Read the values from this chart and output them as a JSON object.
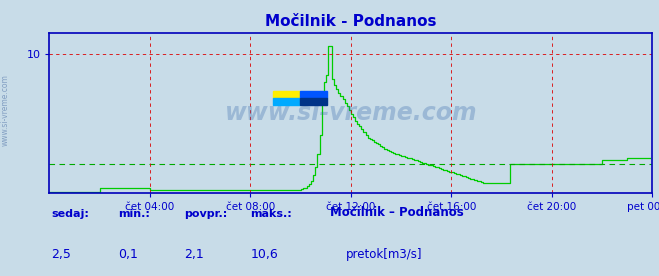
{
  "title": "Močilnik - Podnanos",
  "bg_color": "#c8dce8",
  "plot_bg_color": "#c8dce8",
  "line_color": "#00cc00",
  "avg_line_color": "#00aa00",
  "axis_color": "#0000bb",
  "grid_color_h": "#dd0000",
  "grid_color_v": "#dd0000",
  "title_color": "#0000cc",
  "tick_color": "#0000cc",
  "ylim": [
    0,
    11.5
  ],
  "ytick_val": 10,
  "x_labels": [
    "čet 04:00",
    "čet 08:00",
    "čet 12:00",
    "čet 16:00",
    "čet 20:00",
    "pet 00:00"
  ],
  "avg_value": 2.1,
  "watermark": "www.si-vreme.com",
  "legend_label": "Močilnik – Podnanos",
  "legend_unit": "pretok[m3/s]",
  "sedaj": "2,5",
  "min_val": "0,1",
  "povpr_val": "2,1",
  "maks_val": "10,6",
  "flow_data": [
    0.1,
    0.1,
    0.1,
    0.1,
    0.1,
    0.1,
    0.1,
    0.1,
    0.1,
    0.1,
    0.1,
    0.1,
    0.1,
    0.1,
    0.1,
    0.1,
    0.1,
    0.1,
    0.1,
    0.1,
    0.1,
    0.1,
    0.1,
    0.1,
    0.35,
    0.35,
    0.35,
    0.35,
    0.35,
    0.35,
    0.35,
    0.35,
    0.35,
    0.35,
    0.35,
    0.35,
    0.35,
    0.35,
    0.35,
    0.35,
    0.35,
    0.35,
    0.35,
    0.35,
    0.35,
    0.35,
    0.35,
    0.35,
    0.25,
    0.25,
    0.25,
    0.25,
    0.25,
    0.25,
    0.25,
    0.25,
    0.25,
    0.25,
    0.25,
    0.25,
    0.25,
    0.25,
    0.25,
    0.25,
    0.25,
    0.25,
    0.25,
    0.25,
    0.25,
    0.25,
    0.25,
    0.25,
    0.25,
    0.25,
    0.25,
    0.25,
    0.25,
    0.25,
    0.25,
    0.25,
    0.25,
    0.25,
    0.25,
    0.25,
    0.25,
    0.25,
    0.25,
    0.25,
    0.25,
    0.25,
    0.25,
    0.25,
    0.25,
    0.25,
    0.25,
    0.25,
    0.25,
    0.25,
    0.25,
    0.25,
    0.25,
    0.25,
    0.25,
    0.25,
    0.25,
    0.25,
    0.25,
    0.25,
    0.25,
    0.25,
    0.25,
    0.25,
    0.25,
    0.25,
    0.25,
    0.25,
    0.25,
    0.25,
    0.25,
    0.25,
    0.3,
    0.35,
    0.4,
    0.5,
    0.65,
    0.9,
    1.3,
    1.9,
    2.8,
    4.2,
    6.5,
    8.0,
    8.5,
    10.6,
    10.6,
    8.2,
    7.8,
    7.5,
    7.2,
    7.0,
    6.8,
    6.5,
    6.3,
    6.0,
    5.7,
    5.5,
    5.2,
    5.0,
    4.8,
    4.6,
    4.4,
    4.2,
    4.0,
    3.9,
    3.8,
    3.7,
    3.6,
    3.5,
    3.4,
    3.3,
    3.2,
    3.1,
    3.0,
    2.95,
    2.9,
    2.85,
    2.8,
    2.75,
    2.7,
    2.65,
    2.6,
    2.55,
    2.5,
    2.45,
    2.4,
    2.35,
    2.3,
    2.25,
    2.2,
    2.15,
    2.1,
    2.05,
    2.0,
    1.95,
    1.9,
    1.85,
    1.8,
    1.75,
    1.7,
    1.65,
    1.6,
    1.55,
    1.5,
    1.45,
    1.4,
    1.35,
    1.3,
    1.25,
    1.2,
    1.15,
    1.1,
    1.05,
    1.0,
    0.95,
    0.9,
    0.85,
    0.8,
    0.75,
    0.7,
    0.7,
    0.7,
    0.7,
    0.7,
    0.7,
    0.7,
    0.7,
    0.7,
    0.7,
    0.7,
    0.7,
    2.1,
    2.1,
    2.1,
    2.1,
    2.1,
    2.1,
    2.1,
    2.1,
    2.1,
    2.1,
    2.1,
    2.1,
    2.1,
    2.1,
    2.1,
    2.1,
    2.1,
    2.1,
    2.1,
    2.1,
    2.1,
    2.1,
    2.1,
    2.1,
    2.1,
    2.1,
    2.1,
    2.1,
    2.1,
    2.1,
    2.1,
    2.1,
    2.1,
    2.1,
    2.1,
    2.1,
    2.1,
    2.1,
    2.1,
    2.1,
    2.1,
    2.1,
    2.1,
    2.1,
    2.4,
    2.4,
    2.4,
    2.4,
    2.4,
    2.4,
    2.4,
    2.4,
    2.4,
    2.4,
    2.4,
    2.4,
    2.5,
    2.5,
    2.5,
    2.5,
    2.5,
    2.5,
    2.5,
    2.5,
    2.5,
    2.5,
    2.5,
    2.5
  ]
}
